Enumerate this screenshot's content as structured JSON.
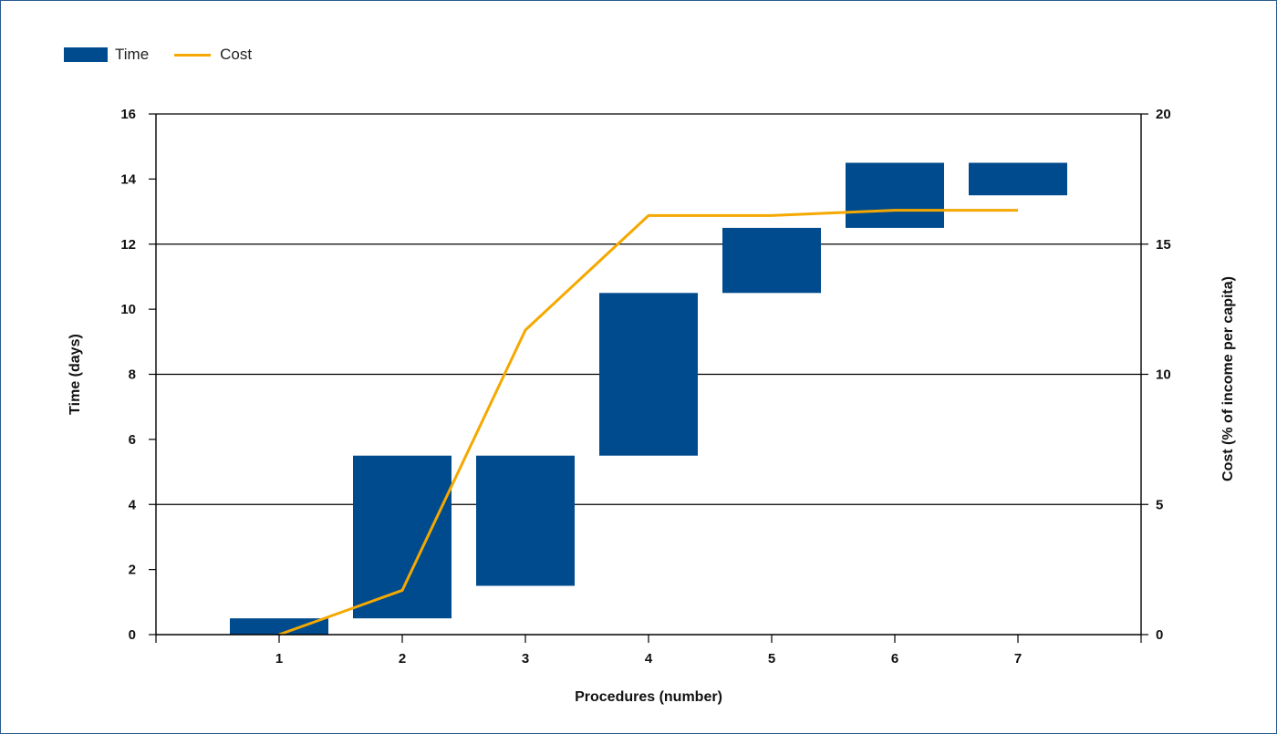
{
  "legend": {
    "time_label": "Time",
    "cost_label": "Cost"
  },
  "colors": {
    "bar": "#004b8d",
    "line": "#f5a800",
    "grid": "#000000"
  },
  "chart_data": {
    "type": "bar",
    "categories": [
      "1",
      "2",
      "3",
      "4",
      "5",
      "6",
      "7"
    ],
    "series": [
      {
        "name": "Time",
        "kind": "floating-bar",
        "axis": "left",
        "ranges": [
          [
            0,
            0.5
          ],
          [
            0.5,
            5.5
          ],
          [
            1.5,
            5.5
          ],
          [
            5.5,
            10.5
          ],
          [
            10.5,
            12.5
          ],
          [
            12.5,
            14.5
          ],
          [
            13.5,
            14.5
          ]
        ]
      },
      {
        "name": "Cost",
        "kind": "line",
        "axis": "right",
        "values": [
          0,
          1.7,
          11.7,
          16.1,
          16.1,
          16.3,
          16.3
        ]
      }
    ],
    "xlabel": "Procedures (number)",
    "ylabel": "Time (days)",
    "y2label": "Cost (% of income per capita)",
    "ylim": [
      0,
      16
    ],
    "y2lim": [
      0,
      20
    ],
    "yticks": [
      "0",
      "2",
      "4",
      "6",
      "8",
      "10",
      "12",
      "14",
      "16"
    ],
    "y2ticks": [
      "0",
      "5",
      "10",
      "15",
      "20"
    ],
    "grid": true,
    "legend_position": "top-left"
  }
}
